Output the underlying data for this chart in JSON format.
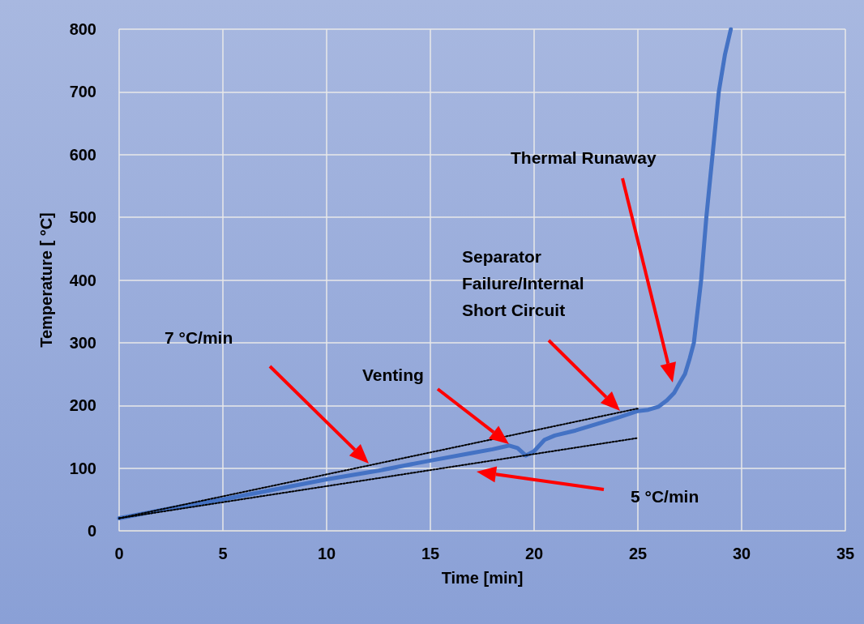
{
  "chart_data": {
    "type": "line",
    "xlabel": "Time [min]",
    "ylabel": "Temperature [ °C]",
    "xlim": [
      0,
      35
    ],
    "xticks": [
      0,
      5,
      10,
      15,
      20,
      25,
      30,
      35
    ],
    "ylim": [
      0,
      800
    ],
    "yticks": [
      0,
      100,
      200,
      300,
      400,
      500,
      600,
      700,
      800
    ],
    "grid": true,
    "marker": "none",
    "series": [
      {
        "color": "#4472c4",
        "line_style": "solid",
        "x": [
          0,
          2.5,
          5,
          7.5,
          10,
          12.5,
          15,
          17,
          18,
          18.8,
          19.2,
          19.6,
          20,
          20.5,
          21,
          22,
          23,
          24,
          25,
          25.5,
          26,
          26.4,
          26.75,
          27,
          27.27,
          27.5,
          27.7,
          28.05,
          28.3,
          28.6,
          28.9,
          29.2,
          29.48
        ],
        "values": [
          20,
          36,
          50,
          66,
          82,
          96,
          112,
          124,
          130,
          136,
          132,
          120,
          127,
          145,
          152,
          160,
          170,
          180,
          191,
          193,
          198,
          208,
          220,
          235,
          250,
          275,
          300,
          400,
          500,
          600,
          700,
          760,
          800
        ]
      },
      {
        "color": "#000000",
        "line_style": "dotted",
        "x": [
          0,
          25
        ],
        "values": [
          20,
          195
        ]
      },
      {
        "color": "#000000",
        "line_style": "dotted",
        "x": [
          0,
          25
        ],
        "values": [
          20,
          148
        ]
      }
    ],
    "annotations": [
      "7 °C/min",
      "Venting",
      "Separator\nFailure/Internal\nShort Circuit",
      "Thermal Runaway",
      "5 °C/min"
    ]
  }
}
